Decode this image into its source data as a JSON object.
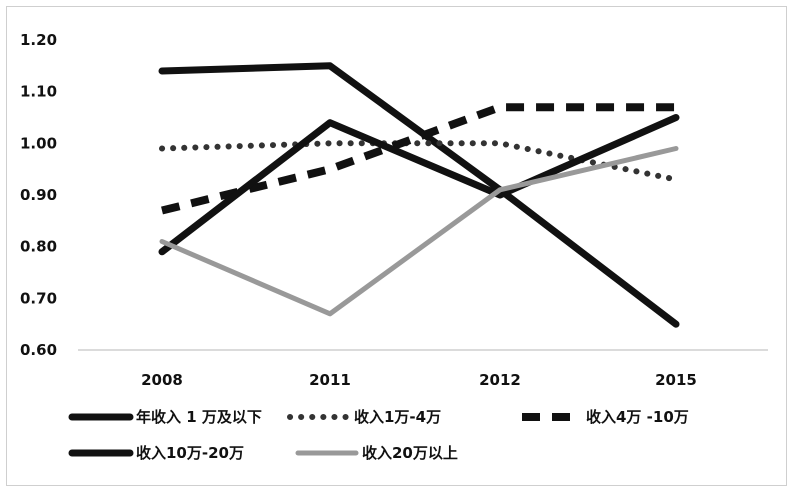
{
  "chart_data": {
    "type": "line",
    "title": "",
    "xlabel": "",
    "ylabel": "",
    "categories": [
      "2008",
      "2011",
      "2012",
      "2015"
    ],
    "ylim": [
      0.6,
      1.2
    ],
    "yticks": [
      "0.60",
      "0.70",
      "0.80",
      "0.90",
      "1.00",
      "1.10",
      "1.20"
    ],
    "grid": false,
    "legend_position": "bottom",
    "series": [
      {
        "name": "年收入 1 万及以下",
        "values": [
          1.14,
          1.15,
          0.91,
          0.65
        ],
        "style": "solid",
        "color": "#111111"
      },
      {
        "name": "收入1万-4万",
        "values": [
          0.99,
          1.0,
          1.0,
          0.93
        ],
        "style": "dotted",
        "color": "#333333"
      },
      {
        "name": "收入4万 -10万",
        "values": [
          0.87,
          0.95,
          1.07,
          1.07
        ],
        "style": "dashed",
        "color": "#111111"
      },
      {
        "name": "收入10万-20万",
        "values": [
          0.79,
          1.04,
          0.9,
          1.05
        ],
        "style": "solid",
        "color": "#111111"
      },
      {
        "name": "收入20万以上",
        "values": [
          0.81,
          0.67,
          0.91,
          0.99
        ],
        "style": "solid",
        "color": "#999999"
      }
    ]
  }
}
